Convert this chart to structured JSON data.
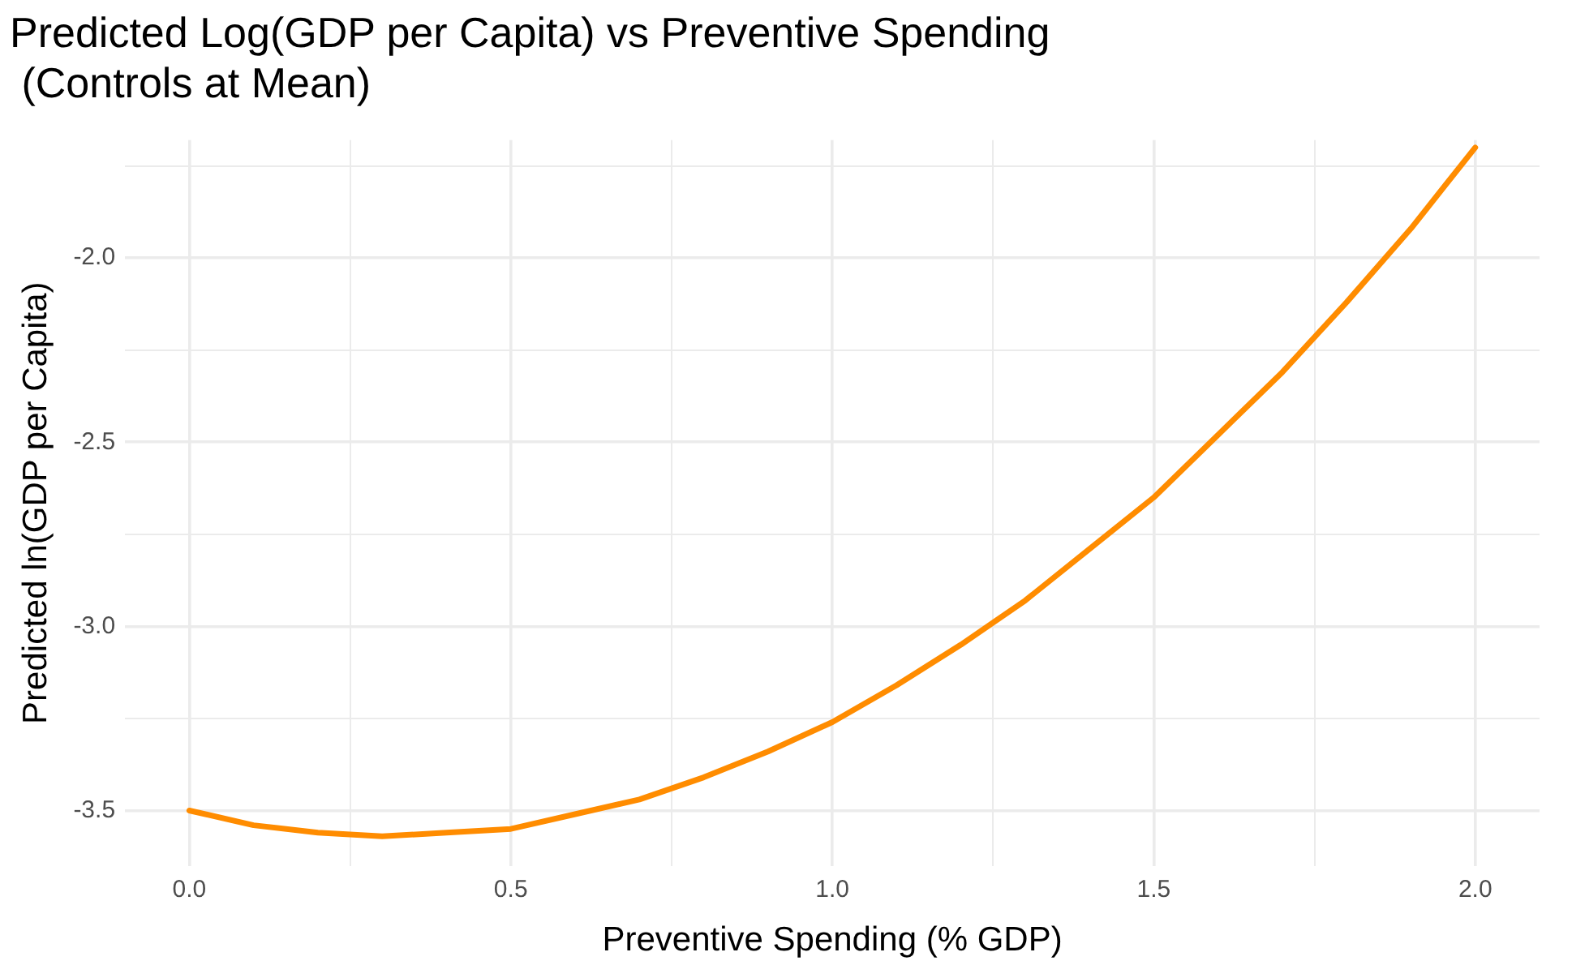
{
  "chart_data": {
    "type": "line",
    "title": "Predicted Log(GDP per Capita) vs Preventive Spending\n (Controls at Mean)",
    "xlabel": "Preventive Spending (% GDP)",
    "ylabel": "Predicted ln(GDP per Capita)",
    "x": [
      0,
      0.1,
      0.2,
      0.3,
      0.4,
      0.5,
      0.6,
      0.7,
      0.8,
      0.9,
      1.0,
      1.1,
      1.2,
      1.3,
      1.4,
      1.5,
      1.6,
      1.7,
      1.8,
      1.9,
      2.0
    ],
    "series": [
      {
        "color": "#ff8c00",
        "values": [
          -3.5,
          -3.54,
          -3.56,
          -3.57,
          -3.56,
          -3.55,
          -3.51,
          -3.47,
          -3.41,
          -3.34,
          -3.26,
          -3.16,
          -3.05,
          -2.93,
          -2.79,
          -2.65,
          -2.48,
          -2.31,
          -2.12,
          -1.92,
          -1.7
        ]
      }
    ],
    "xlim": [
      -0.1,
      2.1
    ],
    "xticks": [
      {
        "value": 0,
        "label": "0.0"
      },
      {
        "value": 0.25,
        "label": null
      },
      {
        "value": 0.5,
        "label": "0.5"
      },
      {
        "value": 0.75,
        "label": null
      },
      {
        "value": 1,
        "label": "1.0"
      },
      {
        "value": 1.25,
        "label": null
      },
      {
        "value": 1.5,
        "label": "1.5"
      },
      {
        "value": 1.75,
        "label": null
      },
      {
        "value": 2,
        "label": "2.0"
      }
    ],
    "ylim": [
      -3.65,
      -1.68
    ],
    "yticks": [
      {
        "value": -3.5,
        "label": "-3.5"
      },
      {
        "value": -3.25,
        "label": null
      },
      {
        "value": -3,
        "label": "-3.0"
      },
      {
        "value": -2.75,
        "label": null
      },
      {
        "value": -2.5,
        "label": "-2.5"
      },
      {
        "value": -2.25,
        "label": null
      },
      {
        "value": -2,
        "label": "-2.0"
      },
      {
        "value": -1.75,
        "label": null
      }
    ],
    "grid": true,
    "marker": "none",
    "line_style": "solid",
    "legend": false
  }
}
